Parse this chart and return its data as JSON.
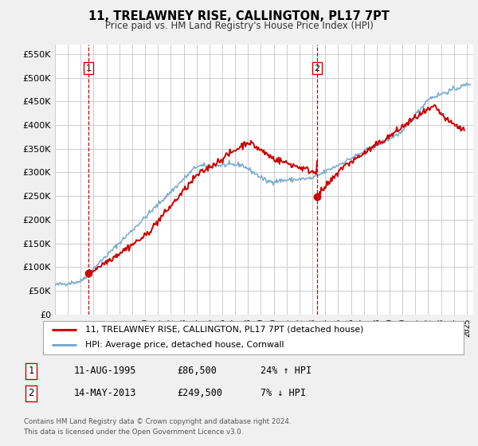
{
  "title": "11, TRELAWNEY RISE, CALLINGTON, PL17 7PT",
  "subtitle": "Price paid vs. HM Land Registry's House Price Index (HPI)",
  "background_color": "#f0f0f0",
  "plot_bg_color": "#ffffff",
  "grid_color": "#cccccc",
  "red_line_color": "#cc0000",
  "blue_line_color": "#7aabcc",
  "vline_color": "#cc0000",
  "marker_color": "#cc0000",
  "ylim": [
    0,
    570000
  ],
  "yticks": [
    0,
    50000,
    100000,
    150000,
    200000,
    250000,
    300000,
    350000,
    400000,
    450000,
    500000,
    550000
  ],
  "ytick_labels": [
    "£0",
    "£50K",
    "£100K",
    "£150K",
    "£200K",
    "£250K",
    "£300K",
    "£350K",
    "£400K",
    "£450K",
    "£500K",
    "£550K"
  ],
  "xmin": 1993.0,
  "xmax": 2025.5,
  "transaction1_x": 1995.61,
  "transaction1_y": 86500,
  "transaction2_x": 2013.37,
  "transaction2_y": 249500,
  "legend_line1": "11, TRELAWNEY RISE, CALLINGTON, PL17 7PT (detached house)",
  "legend_line2": "HPI: Average price, detached house, Cornwall",
  "info1_num": "1",
  "info1_date": "11-AUG-1995",
  "info1_price": "£86,500",
  "info1_hpi": "24% ↑ HPI",
  "info2_num": "2",
  "info2_date": "14-MAY-2013",
  "info2_price": "£249,500",
  "info2_hpi": "7% ↓ HPI",
  "footnote1": "Contains HM Land Registry data © Crown copyright and database right 2024.",
  "footnote2": "This data is licensed under the Open Government Licence v3.0."
}
